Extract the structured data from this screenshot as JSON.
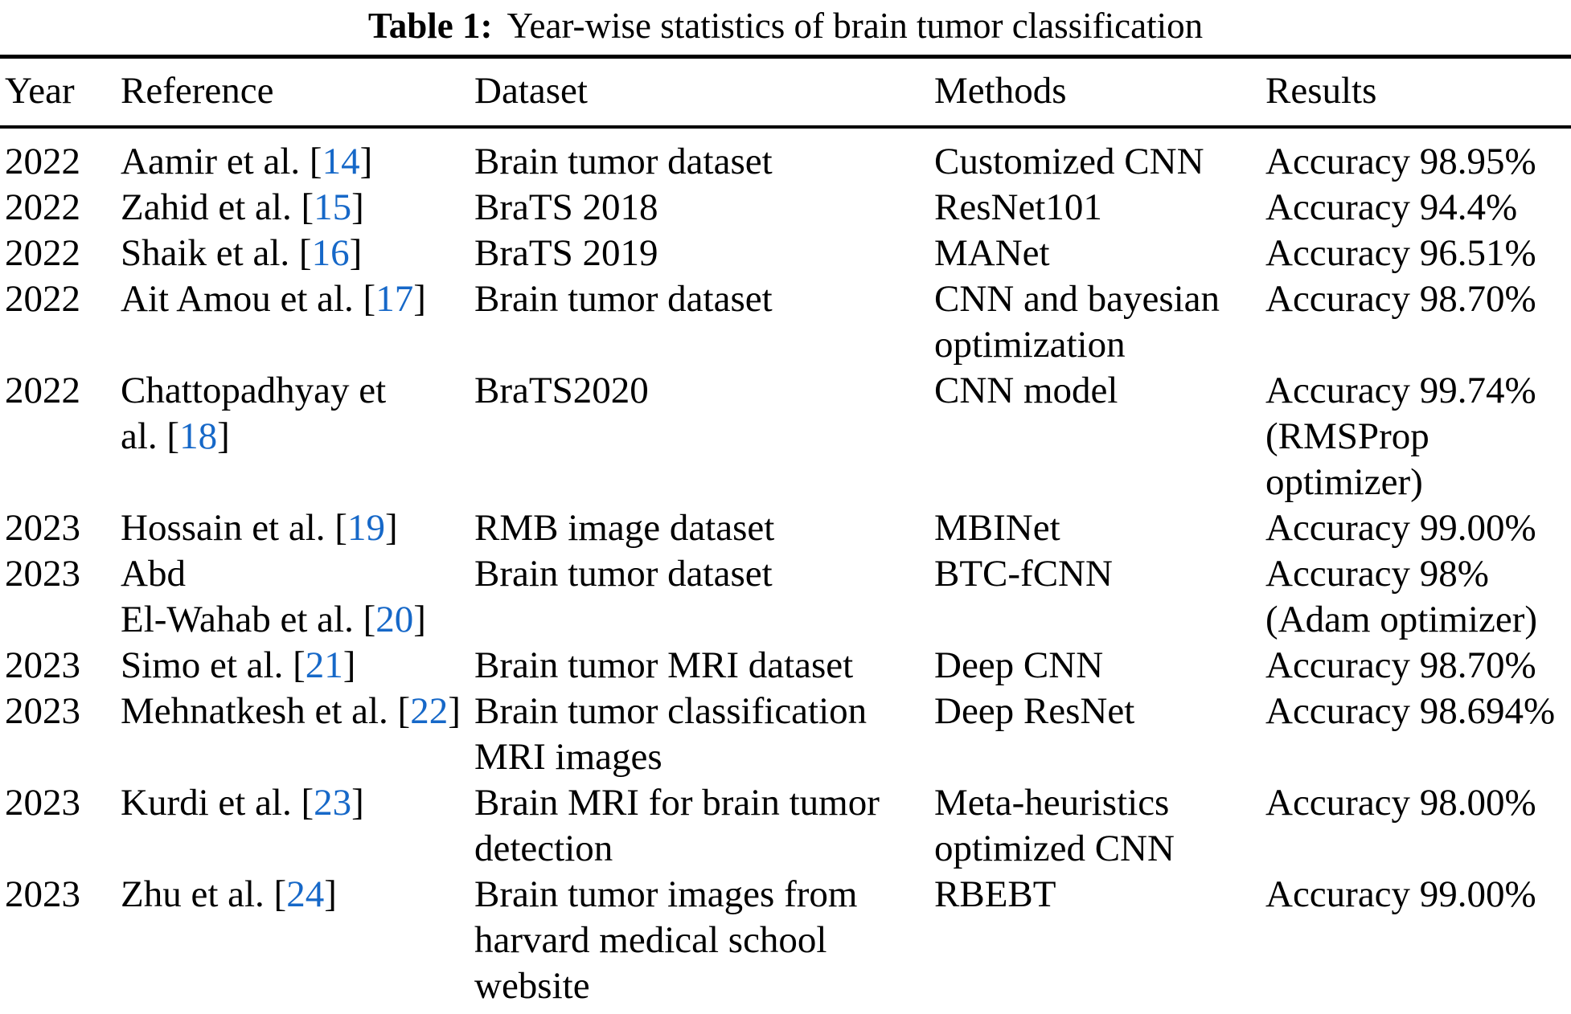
{
  "title": {
    "label": "Table 1:",
    "text": "Year-wise statistics of brain tumor classification"
  },
  "columns": [
    "Year",
    "Reference",
    "Dataset",
    "Methods",
    "Results"
  ],
  "colors": {
    "text": "#000000",
    "citation_link": "#1668c8",
    "rule": "#000000"
  },
  "rows": [
    {
      "year": "2022",
      "ref_pre": "Aamir et al. [",
      "ref_num": "14",
      "ref_post": "]",
      "dataset": "Brain tumor dataset",
      "methods": "Customized CNN",
      "results": "Accuracy 98.95%"
    },
    {
      "year": "2022",
      "ref_pre": "Zahid et al. [",
      "ref_num": "15",
      "ref_post": "]",
      "dataset": "BraTS 2018",
      "methods": "ResNet101",
      "results": "Accuracy 94.4%"
    },
    {
      "year": "2022",
      "ref_pre": "Shaik et al. [",
      "ref_num": "16",
      "ref_post": "]",
      "dataset": "BraTS 2019",
      "methods": "MANet",
      "results": "Accuracy 96.51%"
    },
    {
      "year": "2022",
      "ref_pre": "Ait Amou et al. [",
      "ref_num": "17",
      "ref_post": "]",
      "dataset": "Brain tumor dataset",
      "methods": "CNN and bayesian\noptimization",
      "results": "Accuracy 98.70%"
    },
    {
      "year": "2022",
      "ref_pre": "Chattopadhyay et\nal. [",
      "ref_num": "18",
      "ref_post": "]",
      "dataset": "BraTS2020",
      "methods": "CNN model",
      "results": "Accuracy 99.74%\n(RMSProp\noptimizer)"
    },
    {
      "year": "2023",
      "ref_pre": "Hossain et al. [",
      "ref_num": "19",
      "ref_post": "]",
      "dataset": "RMB image dataset",
      "methods": "MBINet",
      "results": "Accuracy 99.00%"
    },
    {
      "year": "2023",
      "ref_pre": "Abd\nEl-Wahab et al. [",
      "ref_num": "20",
      "ref_post": "]",
      "dataset": "Brain tumor dataset",
      "methods": "BTC-fCNN",
      "results": "Accuracy 98%\n(Adam optimizer)"
    },
    {
      "year": "2023",
      "ref_pre": "Simo et al. [",
      "ref_num": "21",
      "ref_post": "]",
      "dataset": "Brain tumor MRI dataset",
      "methods": "Deep CNN",
      "results": "Accuracy 98.70%"
    },
    {
      "year": "2023",
      "ref_pre": "Mehnatkesh et al. [",
      "ref_num": "22",
      "ref_post": "]",
      "dataset": "Brain tumor classification\nMRI images",
      "methods": "Deep ResNet",
      "results": "Accuracy 98.694%"
    },
    {
      "year": "2023",
      "ref_pre": "Kurdi et al. [",
      "ref_num": "23",
      "ref_post": "]",
      "dataset": "Brain MRI for brain tumor\ndetection",
      "methods": "Meta-heuristics\noptimized CNN",
      "results": "Accuracy 98.00%"
    },
    {
      "year": "2023",
      "ref_pre": "Zhu et al. [",
      "ref_num": "24",
      "ref_post": "]",
      "dataset": "Brain tumor images from\nharvard medical school\nwebsite",
      "methods": "RBEBT",
      "results": "Accuracy 99.00%"
    }
  ]
}
